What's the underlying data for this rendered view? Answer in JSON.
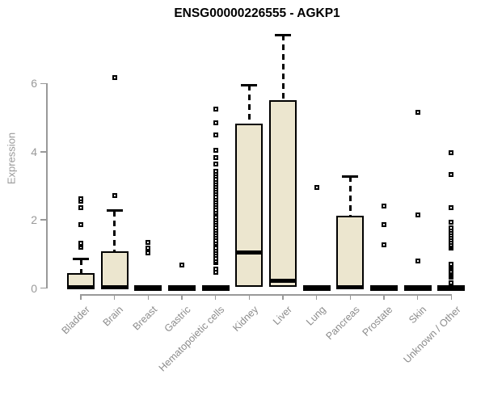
{
  "chart_data": {
    "type": "boxplot",
    "title": "ENSG00000226555 - AGKP1",
    "ylabel": "Expression",
    "xlabel": "",
    "ylim": [
      0,
      7.5
    ],
    "y_ticks": [
      0,
      2,
      4,
      6
    ],
    "grid": false,
    "legend": "none",
    "box_fill_color": "#ece6cf",
    "box_stroke_color": "#000000",
    "axis_color": "#999999",
    "categories": [
      "Bladder",
      "Brain",
      "Breast",
      "Gastric",
      "Hematopoietic cells",
      "Kidney",
      "Liver",
      "Lung",
      "Pancreas",
      "Prostate",
      "Skin",
      "Unknown / Other"
    ],
    "series": [
      {
        "label": "Bladder",
        "q1": 0,
        "median": 0.04,
        "q3": 0.44,
        "whisker_low": 0,
        "whisker_high": 0.85,
        "outliers": [
          1.2,
          1.26,
          1.33,
          1.87,
          2.37,
          2.55,
          2.61
        ]
      },
      {
        "label": "Brain",
        "q1": 0,
        "median": 0.04,
        "q3": 1.08,
        "whisker_low": 0,
        "whisker_high": 2.27,
        "outliers": [
          2.72,
          6.18
        ]
      },
      {
        "label": "Breast",
        "q1": 0,
        "median": 0,
        "q3": 0,
        "whisker_low": 0,
        "whisker_high": 0,
        "outliers": [
          1.03,
          1.17,
          1.35
        ]
      },
      {
        "label": "Gastric",
        "q1": 0,
        "median": 0,
        "q3": 0,
        "whisker_low": 0,
        "whisker_high": 0,
        "outliers": [
          0.69
        ]
      },
      {
        "label": "Hematopoietic cells",
        "q1": 0,
        "median": 0,
        "q3": 0,
        "whisker_low": 0,
        "whisker_high": 0,
        "outliers": [
          0.47,
          0.55,
          0.75,
          0.8,
          0.88,
          0.96,
          1.03,
          1.1,
          1.18,
          1.26,
          1.33,
          1.4,
          1.48,
          1.56,
          1.63,
          1.7,
          1.78,
          1.86,
          1.93,
          2.0,
          2.08,
          2.16,
          2.23,
          2.3,
          2.38,
          2.46,
          2.53,
          2.6,
          2.68,
          2.76,
          2.83,
          2.9,
          2.98,
          3.05,
          3.12,
          3.2,
          3.28,
          3.35,
          3.42,
          3.65,
          3.83,
          4.05,
          4.5,
          4.84,
          5.25
        ]
      },
      {
        "label": "Kidney",
        "q1": 0.03,
        "median": 1.05,
        "q3": 4.82,
        "whisker_low": 0.03,
        "whisker_high": 5.96,
        "outliers": []
      },
      {
        "label": "Liver",
        "q1": 0.05,
        "median": 0.22,
        "q3": 5.5,
        "whisker_low": 0.05,
        "whisker_high": 7.42,
        "outliers": []
      },
      {
        "label": "Lung",
        "q1": 0,
        "median": 0,
        "q3": 0,
        "whisker_low": 0,
        "whisker_high": 0,
        "outliers": [
          2.95
        ]
      },
      {
        "label": "Pancreas",
        "q1": 0,
        "median": 0.04,
        "q3": 2.13,
        "whisker_low": 0,
        "whisker_high": 3.28,
        "outliers": []
      },
      {
        "label": "Prostate",
        "q1": 0,
        "median": 0,
        "q3": 0,
        "whisker_low": 0,
        "whisker_high": 0,
        "outliers": [
          1.26,
          1.86,
          2.41
        ]
      },
      {
        "label": "Skin",
        "q1": 0,
        "median": 0,
        "q3": 0,
        "whisker_low": 0,
        "whisker_high": 0,
        "outliers": [
          0.79,
          2.15,
          5.15
        ]
      },
      {
        "label": "Unknown / Other",
        "q1": 0,
        "median": 0,
        "q3": 0,
        "whisker_low": 0,
        "whisker_high": 0,
        "outliers": [
          0.16,
          0.32,
          0.36,
          0.4,
          0.45,
          0.5,
          0.55,
          0.6,
          0.65,
          0.71,
          1.18,
          1.22,
          1.28,
          1.35,
          1.42,
          1.48,
          1.55,
          1.62,
          1.7,
          1.78,
          1.93,
          2.37,
          3.32,
          3.97
        ]
      }
    ]
  }
}
